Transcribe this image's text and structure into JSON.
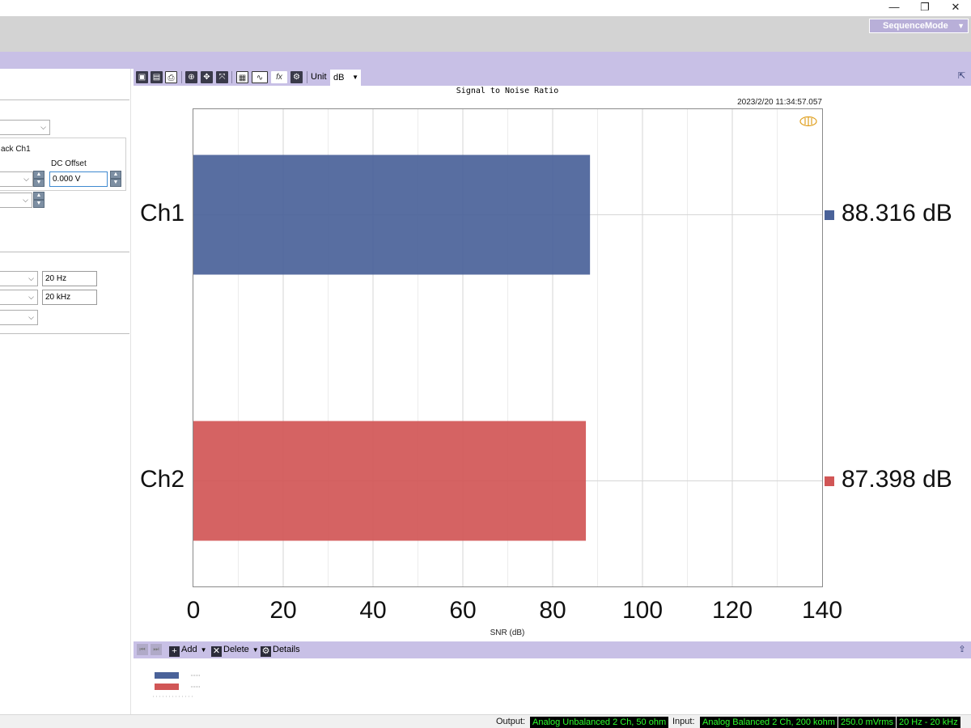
{
  "window": {
    "minimize_glyph": "—",
    "restore_glyph": "❐",
    "close_glyph": "✕"
  },
  "ribbon": {
    "sequence_mode_label": "SequenceMode"
  },
  "left_panel": {
    "group_title": "ack Ch1",
    "dc_offset_label": "DC Offset",
    "dc_offset_value": "0.000 V",
    "low_freq_value": "20 Hz",
    "high_freq_value": "20 kHz"
  },
  "toolbar": {
    "unit_label": "Unit",
    "unit_value": "dB",
    "icons": [
      "save-icon",
      "save-as-icon",
      "print-icon",
      "zoom-icon",
      "pan-icon",
      "fit-icon",
      "table-icon",
      "graph-type-icon",
      "function-icon",
      "settings-icon"
    ]
  },
  "chart": {
    "title": "Signal to Noise Ratio",
    "timestamp": "2023/2/20 11:34:57.057",
    "xlabel": "SNR (dB)"
  },
  "chart_data": {
    "type": "bar",
    "orientation": "horizontal",
    "title": "Signal to Noise Ratio",
    "xlabel": "SNR (dB)",
    "ylabel": "",
    "categories": [
      "Ch1",
      "Ch2"
    ],
    "series": [
      {
        "values": [
          88.316,
          87.398
        ]
      }
    ],
    "value_labels": [
      "88.316 dB",
      "87.398 dB"
    ],
    "bar_colors": [
      "#4a6299",
      "#d15656"
    ],
    "xlim": [
      0,
      140
    ],
    "xticks": [
      0,
      20,
      40,
      60,
      80,
      100,
      120,
      140
    ],
    "xtick_labels": [
      "0",
      "20",
      "40",
      "60",
      "80",
      "100",
      "120",
      "140"
    ],
    "grid": true
  },
  "legend_toolbar": {
    "add_label": "Add",
    "delete_label": "Delete",
    "details_label": "Details"
  },
  "status_bar": {
    "output_label": "Output:",
    "output_value": "Analog Unbalanced 2 Ch, 50 ohm",
    "input_label": "Input:",
    "input_value": "Analog Balanced 2 Ch, 200 kohm",
    "level_value": "250.0 mVrms",
    "bandwidth_value": "20 Hz - 20 kHz"
  }
}
